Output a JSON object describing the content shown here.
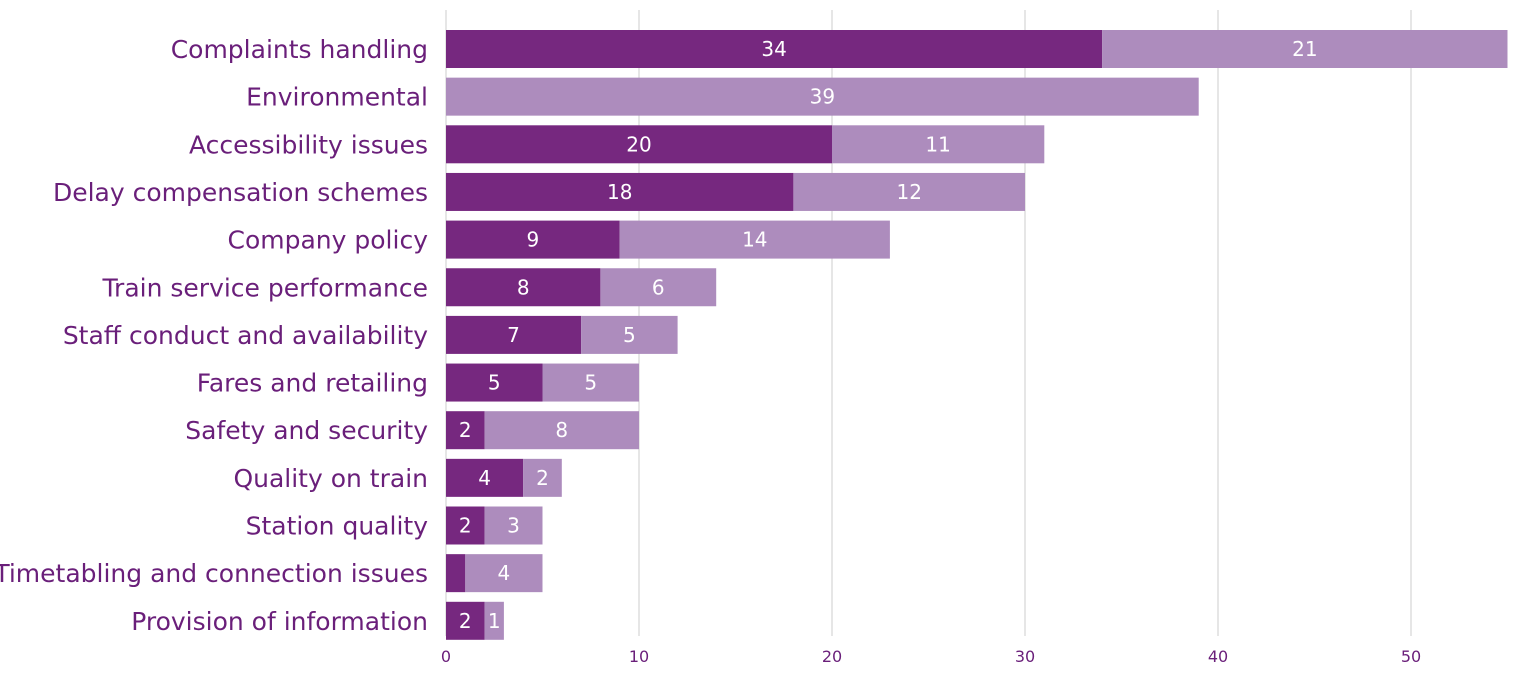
{
  "colors": {
    "series_dark": "#76287f",
    "series_light": "#ad8cbd",
    "label_text": "#6a1f7a",
    "value_text": "#ffffff",
    "grid": "#e6e6e6"
  },
  "chart_data": {
    "type": "bar",
    "orientation": "horizontal",
    "stacked": true,
    "categories": [
      "Complaints handling",
      "Environmental",
      "Accessibility issues",
      "Delay compensation schemes",
      "Company policy",
      "Train service performance",
      "Staff conduct and availability",
      "Fares and retailing",
      "Safety and security",
      "Quality on train",
      "Station quality",
      "Timetabling and connection issues",
      "Provision of information"
    ],
    "series": [
      {
        "values": [
          34,
          0,
          20,
          18,
          9,
          8,
          7,
          5,
          2,
          4,
          2,
          1,
          2
        ]
      },
      {
        "values": [
          21,
          39,
          11,
          12,
          14,
          6,
          5,
          5,
          8,
          2,
          3,
          4,
          1
        ]
      }
    ],
    "data_labels": [
      [
        "34",
        "",
        "20",
        "18",
        "9",
        "8",
        "7",
        "5",
        "2",
        "4",
        "2",
        "",
        "2"
      ],
      [
        "21",
        "39",
        "11",
        "12",
        "14",
        "6",
        "5",
        "5",
        "8",
        "2",
        "3",
        "4",
        "1"
      ]
    ],
    "x_ticks": [
      0,
      10,
      20,
      30,
      40,
      50
    ],
    "xlim": [
      0,
      55
    ],
    "grid": true,
    "legend": "none",
    "title": "",
    "xlabel": "",
    "ylabel": ""
  }
}
